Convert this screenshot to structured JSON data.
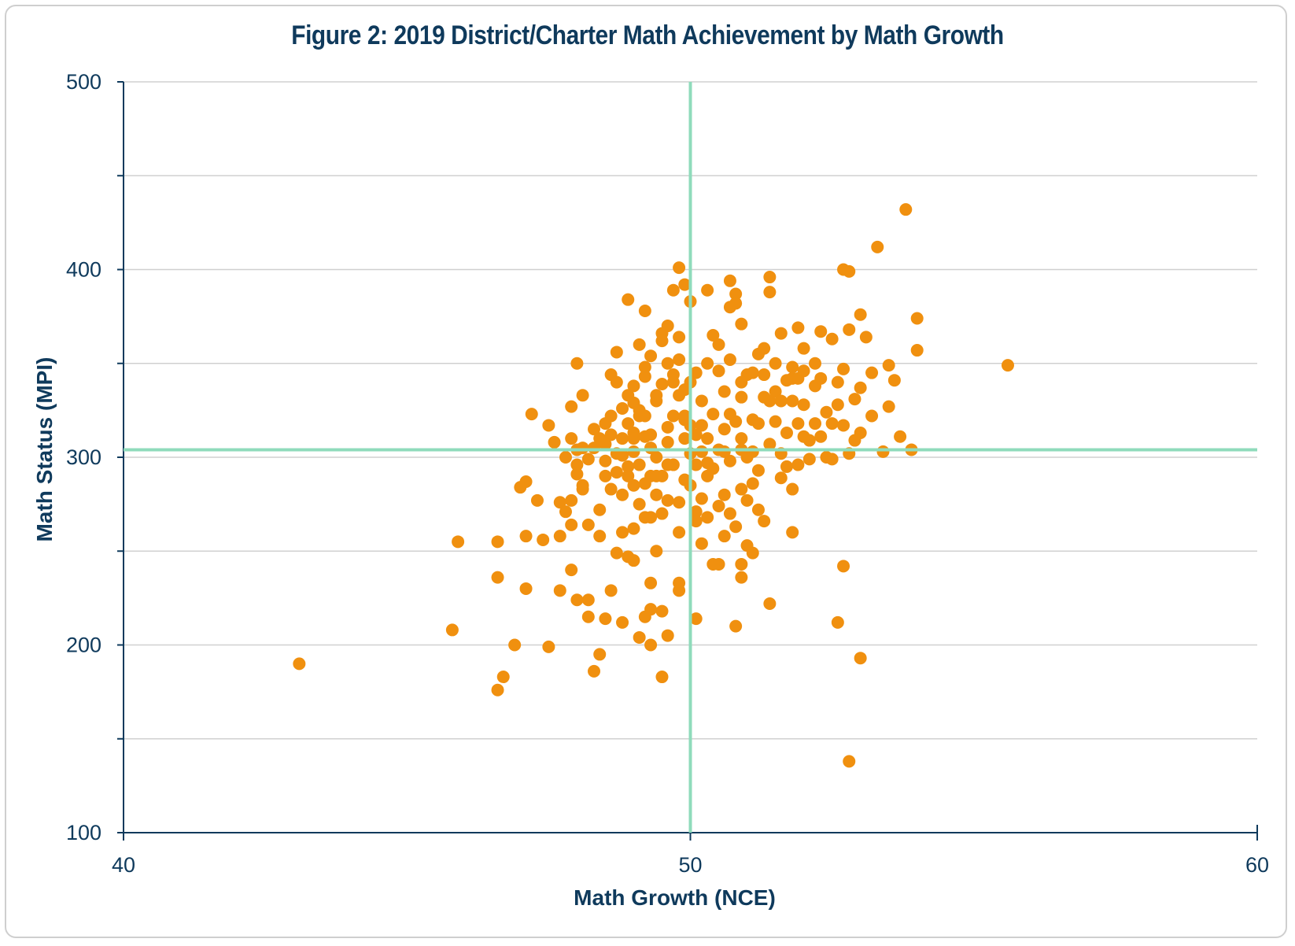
{
  "chart_data": {
    "type": "scatter",
    "title": "Figure 2: 2019 District/Charter Math Achievement by Math Growth",
    "xlabel": "Math Growth (NCE)",
    "ylabel": "Math Status (MPI)",
    "xlim": [
      40,
      60
    ],
    "ylim": [
      100,
      500
    ],
    "x_ticks": [
      "40",
      "50",
      "60"
    ],
    "y_ticks": [
      "100",
      "200",
      "300",
      "400",
      "500"
    ],
    "grid": "horizontal",
    "reference_lines": {
      "x": 50,
      "y": 304
    },
    "colors": {
      "points": "#f0900f",
      "reference": "#8fdbbb",
      "axis": "#0f3a5c",
      "grid": "#d0d0d0"
    },
    "points": [
      [
        43.1,
        190
      ],
      [
        45.8,
        208
      ],
      [
        45.9,
        255
      ],
      [
        46.6,
        176
      ],
      [
        46.7,
        183
      ],
      [
        46.6,
        236
      ],
      [
        46.6,
        255
      ],
      [
        46.9,
        200
      ],
      [
        47.0,
        284
      ],
      [
        47.1,
        287
      ],
      [
        47.1,
        258
      ],
      [
        47.1,
        230
      ],
      [
        47.2,
        323
      ],
      [
        47.3,
        277
      ],
      [
        47.4,
        256
      ],
      [
        47.5,
        199
      ],
      [
        47.5,
        317
      ],
      [
        47.6,
        308
      ],
      [
        47.7,
        276
      ],
      [
        47.8,
        271
      ],
      [
        47.9,
        264
      ],
      [
        47.9,
        240
      ],
      [
        47.9,
        327
      ],
      [
        48.0,
        304
      ],
      [
        48.0,
        350
      ],
      [
        48.0,
        296
      ],
      [
        48.0,
        224
      ],
      [
        48.1,
        333
      ],
      [
        48.1,
        285
      ],
      [
        48.2,
        264
      ],
      [
        48.2,
        215
      ],
      [
        48.3,
        305
      ],
      [
        48.4,
        272
      ],
      [
        48.4,
        195
      ],
      [
        48.5,
        318
      ],
      [
        48.5,
        298
      ],
      [
        48.6,
        283
      ],
      [
        48.6,
        229
      ],
      [
        48.6,
        312
      ],
      [
        48.7,
        292
      ],
      [
        48.7,
        340
      ],
      [
        48.8,
        260
      ],
      [
        48.8,
        212
      ],
      [
        48.8,
        310
      ],
      [
        48.9,
        295
      ],
      [
        49.0,
        338
      ],
      [
        49.0,
        303
      ],
      [
        49.0,
        245
      ],
      [
        49.1,
        360
      ],
      [
        49.1,
        275
      ],
      [
        49.1,
        322
      ],
      [
        49.2,
        348
      ],
      [
        49.2,
        286
      ],
      [
        49.3,
        268
      ],
      [
        49.3,
        312
      ],
      [
        49.4,
        300
      ],
      [
        49.4,
        330
      ],
      [
        49.4,
        250
      ],
      [
        49.5,
        366
      ],
      [
        49.5,
        290
      ],
      [
        49.6,
        316
      ],
      [
        49.6,
        277
      ],
      [
        49.6,
        205
      ],
      [
        49.7,
        340
      ],
      [
        49.7,
        296
      ],
      [
        49.8,
        260
      ],
      [
        49.8,
        352
      ],
      [
        49.8,
        233
      ],
      [
        49.9,
        310
      ],
      [
        49.9,
        320
      ],
      [
        50.0,
        302
      ],
      [
        50.0,
        285
      ],
      [
        50.1,
        345
      ],
      [
        50.1,
        271
      ],
      [
        50.2,
        330
      ],
      [
        50.2,
        254
      ],
      [
        50.3,
        310
      ],
      [
        50.3,
        290
      ],
      [
        50.4,
        365
      ],
      [
        50.5,
        304
      ],
      [
        50.5,
        243
      ],
      [
        50.6,
        280
      ],
      [
        50.6,
        335
      ],
      [
        50.7,
        298
      ],
      [
        50.7,
        323
      ],
      [
        50.8,
        263
      ],
      [
        50.8,
        387
      ],
      [
        50.9,
        310
      ],
      [
        51.0,
        344
      ],
      [
        51.0,
        277
      ],
      [
        51.1,
        320
      ],
      [
        51.2,
        293
      ],
      [
        51.3,
        358
      ],
      [
        51.4,
        307
      ],
      [
        51.5,
        335
      ],
      [
        51.6,
        289
      ],
      [
        51.7,
        313
      ],
      [
        51.8,
        348
      ],
      [
        51.9,
        296
      ],
      [
        52.0,
        328
      ],
      [
        52.1,
        309
      ],
      [
        52.2,
        350
      ],
      [
        52.4,
        300
      ],
      [
        52.5,
        318
      ],
      [
        52.6,
        340
      ],
      [
        52.8,
        302
      ],
      [
        52.9,
        331
      ],
      [
        53.0,
        313
      ],
      [
        53.2,
        345
      ],
      [
        53.4,
        303
      ],
      [
        53.5,
        327
      ],
      [
        53.7,
        311
      ],
      [
        48.9,
        384
      ],
      [
        49.2,
        378
      ],
      [
        49.5,
        362
      ],
      [
        49.6,
        370
      ],
      [
        49.9,
        392
      ],
      [
        49.7,
        389
      ],
      [
        49.8,
        401
      ],
      [
        50.0,
        383
      ],
      [
        49.8,
        364
      ],
      [
        50.3,
        389
      ],
      [
        50.5,
        360
      ],
      [
        50.7,
        380
      ],
      [
        50.7,
        394
      ],
      [
        50.8,
        382
      ],
      [
        50.9,
        371
      ],
      [
        51.4,
        396
      ],
      [
        51.4,
        388
      ],
      [
        51.6,
        366
      ],
      [
        51.9,
        369
      ],
      [
        52.0,
        358
      ],
      [
        52.3,
        367
      ],
      [
        52.5,
        363
      ],
      [
        52.7,
        400
      ],
      [
        53.0,
        376
      ],
      [
        53.1,
        364
      ],
      [
        53.5,
        349
      ],
      [
        53.6,
        341
      ],
      [
        52.8,
        368
      ],
      [
        53.8,
        432
      ],
      [
        54.0,
        374
      ],
      [
        54.0,
        357
      ],
      [
        55.6,
        349
      ],
      [
        53.2,
        322
      ],
      [
        53.3,
        412
      ],
      [
        52.8,
        399
      ],
      [
        53.9,
        304
      ],
      [
        52.7,
        242
      ],
      [
        52.6,
        212
      ],
      [
        53.0,
        193
      ],
      [
        52.8,
        138
      ],
      [
        51.4,
        222
      ],
      [
        50.8,
        210
      ],
      [
        50.4,
        243
      ],
      [
        50.9,
        236
      ],
      [
        51.8,
        283
      ],
      [
        51.8,
        260
      ],
      [
        51.7,
        295
      ],
      [
        49.5,
        183
      ],
      [
        49.5,
        218
      ],
      [
        49.8,
        229
      ],
      [
        50.1,
        214
      ],
      [
        49.3,
        233
      ],
      [
        49.2,
        215
      ],
      [
        49.1,
        204
      ],
      [
        49.0,
        262
      ],
      [
        48.9,
        247
      ],
      [
        49.3,
        200
      ],
      [
        49.3,
        219
      ],
      [
        48.7,
        249
      ],
      [
        48.4,
        258
      ],
      [
        48.5,
        214
      ],
      [
        48.2,
        224
      ],
      [
        48.3,
        186
      ],
      [
        47.7,
        258
      ],
      [
        47.9,
        277
      ],
      [
        47.7,
        229
      ],
      [
        48.1,
        283
      ],
      [
        49.4,
        280
      ],
      [
        49.6,
        296
      ],
      [
        50.2,
        278
      ],
      [
        50.4,
        294
      ],
      [
        50.6,
        303
      ],
      [
        50.2,
        317
      ],
      [
        50.0,
        340
      ],
      [
        49.9,
        322
      ],
      [
        50.1,
        296
      ],
      [
        50.4,
        323
      ],
      [
        50.6,
        315
      ],
      [
        50.9,
        304
      ],
      [
        51.1,
        303
      ],
      [
        51.2,
        318
      ],
      [
        51.0,
        300
      ],
      [
        50.8,
        319
      ],
      [
        50.9,
        332
      ],
      [
        51.3,
        332
      ],
      [
        51.5,
        319
      ],
      [
        51.6,
        302
      ],
      [
        51.9,
        318
      ],
      [
        52.2,
        318
      ],
      [
        52.5,
        299
      ],
      [
        52.1,
        299
      ],
      [
        52.3,
        311
      ],
      [
        52.6,
        328
      ],
      [
        52.9,
        309
      ],
      [
        52.4,
        324
      ],
      [
        52.7,
        317
      ],
      [
        51.8,
        342
      ],
      [
        52.0,
        311
      ],
      [
        51.9,
        342
      ],
      [
        52.2,
        338
      ],
      [
        49.4,
        333
      ],
      [
        49.2,
        322
      ],
      [
        49.0,
        313
      ],
      [
        48.7,
        302
      ],
      [
        48.5,
        307
      ],
      [
        48.4,
        310
      ],
      [
        48.9,
        318
      ],
      [
        49.3,
        290
      ],
      [
        49.1,
        296
      ],
      [
        49.0,
        285
      ],
      [
        48.8,
        280
      ],
      [
        49.2,
        268
      ],
      [
        49.6,
        308
      ],
      [
        49.7,
        322
      ],
      [
        49.8,
        276
      ],
      [
        49.9,
        288
      ],
      [
        50.1,
        266
      ],
      [
        50.3,
        268
      ],
      [
        50.5,
        274
      ],
      [
        50.7,
        270
      ],
      [
        50.9,
        283
      ],
      [
        51.1,
        286
      ],
      [
        51.2,
        272
      ],
      [
        51.3,
        266
      ],
      [
        50.6,
        258
      ],
      [
        50.9,
        243
      ],
      [
        51.0,
        253
      ],
      [
        51.1,
        249
      ],
      [
        50.3,
        350
      ],
      [
        50.5,
        346
      ],
      [
        50.7,
        352
      ],
      [
        50.9,
        340
      ],
      [
        51.1,
        345
      ],
      [
        51.3,
        344
      ],
      [
        51.2,
        355
      ],
      [
        51.4,
        330
      ],
      [
        51.6,
        330
      ],
      [
        51.8,
        330
      ],
      [
        51.5,
        350
      ],
      [
        51.7,
        341
      ],
      [
        52.0,
        346
      ],
      [
        52.3,
        342
      ],
      [
        52.7,
        347
      ],
      [
        53.0,
        337
      ],
      [
        48.6,
        344
      ],
      [
        48.7,
        356
      ],
      [
        48.8,
        326
      ],
      [
        48.9,
        333
      ],
      [
        49.0,
        329
      ],
      [
        49.2,
        343
      ],
      [
        49.3,
        354
      ],
      [
        49.5,
        339
      ],
      [
        49.6,
        350
      ],
      [
        49.7,
        344
      ],
      [
        49.8,
        333
      ],
      [
        49.9,
        336
      ],
      [
        50.0,
        317
      ],
      [
        50.1,
        312
      ],
      [
        50.2,
        303
      ],
      [
        50.3,
        297
      ],
      [
        47.8,
        300
      ],
      [
        47.9,
        310
      ],
      [
        48.0,
        291
      ],
      [
        48.1,
        305
      ],
      [
        48.2,
        299
      ],
      [
        48.3,
        315
      ],
      [
        48.5,
        290
      ],
      [
        48.6,
        322
      ],
      [
        48.8,
        301
      ],
      [
        48.9,
        290
      ],
      [
        49.0,
        310
      ],
      [
        49.1,
        325
      ],
      [
        49.2,
        311
      ],
      [
        49.3,
        305
      ],
      [
        49.4,
        290
      ],
      [
        49.5,
        270
      ]
    ]
  }
}
